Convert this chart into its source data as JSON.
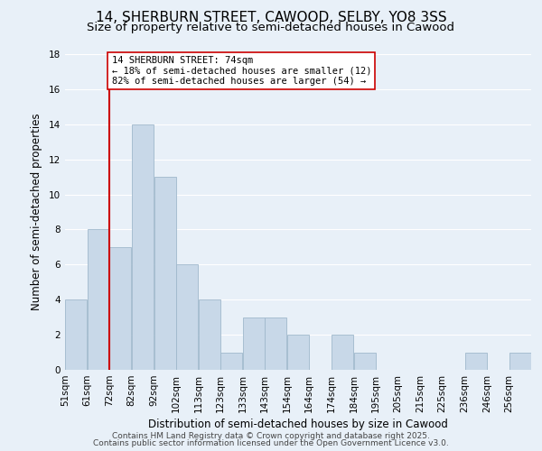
{
  "title": "14, SHERBURN STREET, CAWOOD, SELBY, YO8 3SS",
  "subtitle": "Size of property relative to semi-detached houses in Cawood",
  "xlabel": "Distribution of semi-detached houses by size in Cawood",
  "ylabel": "Number of semi-detached properties",
  "bins": [
    "51sqm",
    "61sqm",
    "72sqm",
    "82sqm",
    "92sqm",
    "102sqm",
    "113sqm",
    "123sqm",
    "133sqm",
    "143sqm",
    "154sqm",
    "164sqm",
    "174sqm",
    "184sqm",
    "195sqm",
    "205sqm",
    "215sqm",
    "225sqm",
    "236sqm",
    "246sqm",
    "256sqm"
  ],
  "values": [
    4,
    8,
    7,
    14,
    11,
    6,
    4,
    1,
    3,
    3,
    2,
    0,
    2,
    1,
    0,
    0,
    0,
    0,
    1,
    0,
    1
  ],
  "bar_color": "#c8d8e8",
  "bar_edge_color": "#a0b8cc",
  "vline_x_index": 2,
  "vline_color": "#cc0000",
  "annotation_title": "14 SHERBURN STREET: 74sqm",
  "annotation_line1": "← 18% of semi-detached houses are smaller (12)",
  "annotation_line2": "82% of semi-detached houses are larger (54) →",
  "annotation_box_color": "#ffffff",
  "annotation_box_edge": "#cc0000",
  "ylim": [
    0,
    18
  ],
  "yticks": [
    0,
    2,
    4,
    6,
    8,
    10,
    12,
    14,
    16,
    18
  ],
  "background_color": "#e8f0f8",
  "grid_color": "#ffffff",
  "footer1": "Contains HM Land Registry data © Crown copyright and database right 2025.",
  "footer2": "Contains public sector information licensed under the Open Government Licence v3.0.",
  "title_fontsize": 11,
  "subtitle_fontsize": 9.5,
  "axis_label_fontsize": 8.5,
  "tick_fontsize": 7.5,
  "annotation_fontsize": 7.5,
  "footer_fontsize": 6.5
}
